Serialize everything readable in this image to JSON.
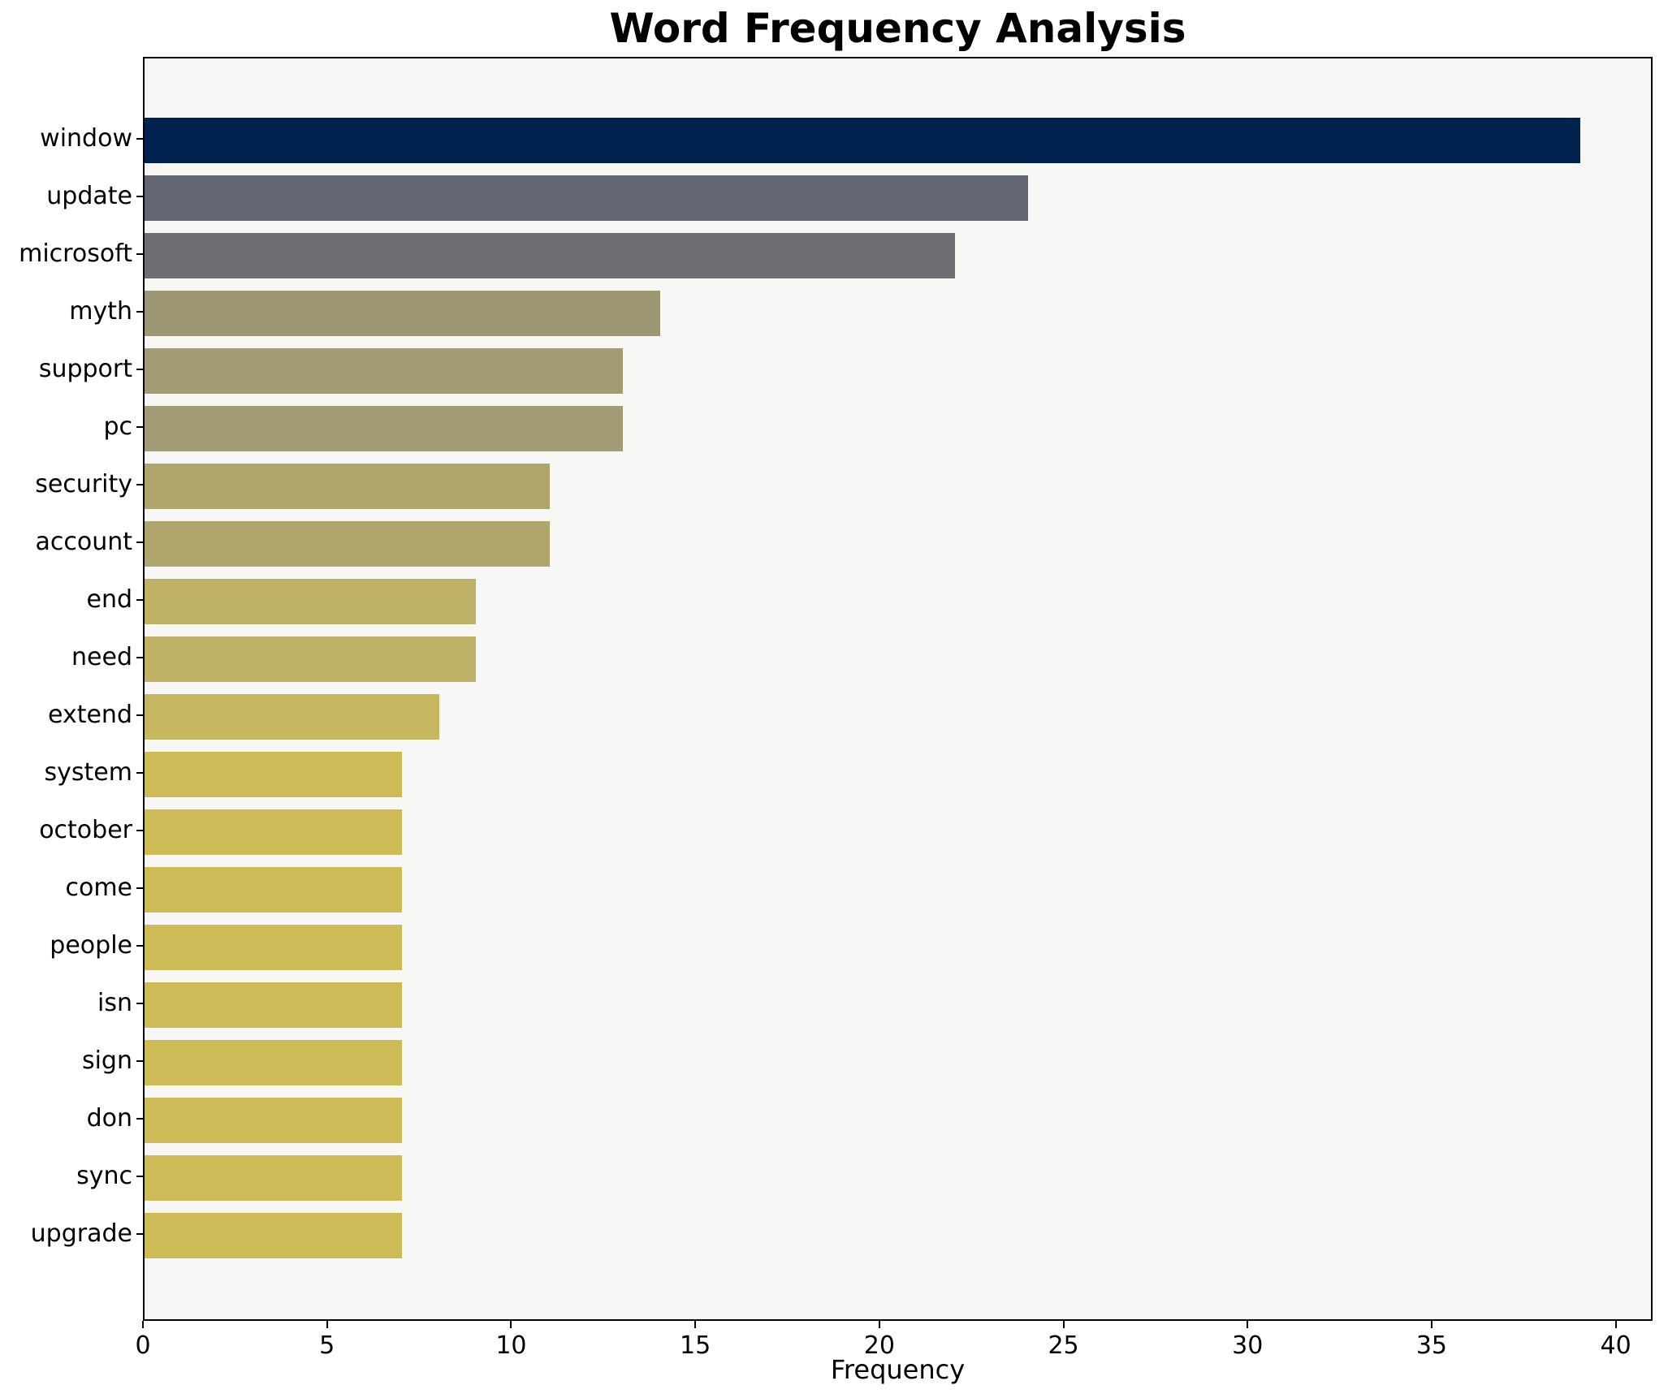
{
  "title": "Word Frequency Analysis",
  "xlabel": "Frequency",
  "chart_data": {
    "type": "bar",
    "orientation": "horizontal",
    "title": "Word Frequency Analysis",
    "xlabel": "Frequency",
    "ylabel": "",
    "xlim": [
      0,
      41
    ],
    "x_ticks": [
      0,
      5,
      10,
      15,
      20,
      25,
      30,
      35,
      40
    ],
    "grid": false,
    "legend": "none",
    "background_color": "#f7f7f6",
    "categories": [
      "window",
      "update",
      "microsoft",
      "myth",
      "support",
      "pc",
      "security",
      "account",
      "end",
      "need",
      "extend",
      "system",
      "october",
      "come",
      "people",
      "isn",
      "sign",
      "don",
      "sync",
      "upgrade"
    ],
    "values": [
      39,
      24,
      22,
      14,
      13,
      13,
      11,
      11,
      9,
      9,
      8,
      7,
      7,
      7,
      7,
      7,
      7,
      7,
      7,
      7
    ],
    "bar_colors": [
      "#00234f",
      "#636673",
      "#6d6e73",
      "#9e9773",
      "#a29b73",
      "#a29b73",
      "#b0a56d",
      "#b0a56d",
      "#bfb166",
      "#bfb166",
      "#c6b65f",
      "#cdbb58",
      "#cdbb58",
      "#cdbb58",
      "#cdbb58",
      "#cdbb58",
      "#cdbb58",
      "#cdbb58",
      "#cdbb58",
      "#cdbb58"
    ]
  }
}
